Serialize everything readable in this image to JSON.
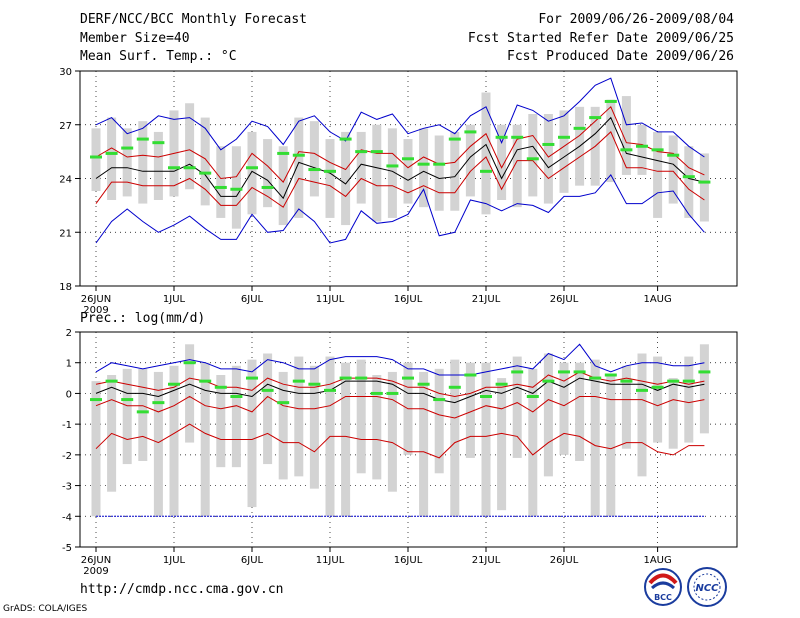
{
  "header": {
    "title": "DERF/NCC/BCC Monthly Forecast",
    "member_size": "Member Size=40",
    "var1": "Mean Surf. Temp.: °C",
    "period": "For 2009/06/26-2009/08/04",
    "refer": "Fcst Started Refer Date 2009/06/25",
    "produced": "Fcst Produced Date 2009/06/26"
  },
  "footer": {
    "url": "http://cmdp.ncc.cma.gov.cn",
    "grads": "GrADS: COLA/IGES",
    "logo1": "BCC",
    "logo2": "NCC"
  },
  "colors": {
    "max": "#0000cc",
    "spread": "#cc0000",
    "mean": "#000000",
    "obs": "#33dd33",
    "box": "#d3d3d3"
  },
  "chart_data": [
    {
      "type": "line",
      "title": "Mean Surf. Temp.: °C",
      "ylim": [
        18,
        30
      ],
      "yticks": [
        "18",
        "21",
        "24",
        "27",
        "30"
      ],
      "xticks": [
        {
          "day": 0,
          "label": "26JUN",
          "sub": "2009"
        },
        {
          "day": 5,
          "label": "1JUL"
        },
        {
          "day": 10,
          "label": "6JUL"
        },
        {
          "day": 15,
          "label": "11JUL"
        },
        {
          "day": 20,
          "label": "16JUL"
        },
        {
          "day": 25,
          "label": "21JUL"
        },
        {
          "day": 30,
          "label": "26JUL"
        },
        {
          "day": 36,
          "label": "1AUG"
        }
      ],
      "ndays": 40,
      "box_low": [
        23.3,
        22.8,
        23.0,
        22.6,
        22.8,
        23.0,
        23.4,
        22.5,
        21.8,
        21.2,
        22.0,
        22.4,
        21.4,
        21.8,
        23.0,
        21.8,
        21.4,
        22.6,
        21.6,
        21.8,
        22.6,
        22.4,
        22.2,
        22.2,
        23.0,
        22.0,
        22.8,
        22.4,
        23.0,
        22.6,
        23.2,
        23.6,
        23.6,
        23.8,
        24.2,
        24.2,
        21.8,
        22.6,
        21.8,
        21.6
      ],
      "box_high": [
        26.8,
        27.4,
        26.8,
        27.2,
        26.6,
        27.8,
        28.2,
        27.4,
        25.8,
        25.8,
        26.6,
        26.2,
        25.8,
        27.4,
        27.2,
        26.2,
        26.6,
        26.6,
        27.0,
        26.8,
        26.2,
        26.8,
        26.4,
        26.6,
        27.0,
        28.8,
        27.0,
        27.0,
        27.6,
        27.6,
        27.8,
        28.0,
        28.0,
        28.4,
        28.6,
        27.0,
        26.6,
        26.4,
        25.8,
        25.4
      ],
      "obs": [
        25.2,
        25.4,
        25.7,
        26.2,
        26.0,
        24.6,
        24.6,
        24.3,
        23.5,
        23.4,
        24.6,
        23.5,
        25.4,
        25.3,
        24.5,
        24.4,
        26.2,
        25.5,
        25.5,
        24.7,
        25.1,
        24.8,
        24.8,
        26.2,
        26.6,
        24.4,
        26.3,
        26.3,
        25.1,
        25.9,
        26.3,
        26.8,
        27.4,
        28.3,
        25.6,
        25.8,
        25.6,
        25.3,
        24.1,
        23.8
      ],
      "series": [
        {
          "name": "max",
          "color": "#0000cc",
          "values": [
            27.0,
            27.4,
            26.5,
            26.8,
            27.5,
            27.3,
            27.4,
            26.8,
            25.6,
            26.2,
            27.2,
            26.9,
            25.9,
            27.2,
            27.5,
            26.6,
            26.1,
            27.7,
            27.3,
            27.6,
            26.5,
            26.8,
            27.0,
            26.5,
            27.5,
            28.0,
            26.0,
            28.1,
            27.8,
            27.2,
            27.5,
            28.3,
            29.2,
            29.6,
            27.0,
            27.1,
            26.6,
            26.6,
            25.8,
            25.2
          ]
        },
        {
          "name": "spread_high",
          "color": "#cc0000",
          "values": [
            25.2,
            25.7,
            25.2,
            25.3,
            25.2,
            25.4,
            25.6,
            25.1,
            24.0,
            24.1,
            25.4,
            24.7,
            23.8,
            25.5,
            25.4,
            24.9,
            24.5,
            25.6,
            25.4,
            25.4,
            24.6,
            25.2,
            24.8,
            24.9,
            25.8,
            26.5,
            24.6,
            26.2,
            26.4,
            25.2,
            25.8,
            26.4,
            27.2,
            28.0,
            26.0,
            25.9,
            25.5,
            25.4,
            24.6,
            24.2
          ]
        },
        {
          "name": "mean",
          "color": "#000000",
          "values": [
            24.0,
            24.6,
            24.6,
            24.4,
            24.4,
            24.4,
            24.8,
            24.2,
            23.0,
            23.0,
            24.4,
            23.9,
            22.9,
            24.9,
            24.6,
            24.3,
            23.7,
            24.8,
            24.6,
            24.4,
            23.9,
            24.4,
            24.0,
            24.1,
            25.2,
            25.9,
            24.0,
            25.6,
            25.8,
            24.6,
            25.2,
            25.8,
            26.5,
            27.4,
            25.4,
            25.2,
            25.0,
            24.8,
            24.0,
            23.8
          ]
        },
        {
          "name": "spread_low",
          "color": "#cc0000",
          "values": [
            22.6,
            23.8,
            23.8,
            23.6,
            23.6,
            23.6,
            24.0,
            23.4,
            22.5,
            22.5,
            23.5,
            23.0,
            22.4,
            24.0,
            23.8,
            23.6,
            23.0,
            24.0,
            23.6,
            23.6,
            23.2,
            23.6,
            23.2,
            23.2,
            24.4,
            25.2,
            23.4,
            25.0,
            25.0,
            24.0,
            24.6,
            25.2,
            25.8,
            26.6,
            24.6,
            24.6,
            24.4,
            24.4,
            23.4,
            22.8
          ]
        },
        {
          "name": "min",
          "color": "#0000cc",
          "values": [
            20.4,
            21.6,
            22.3,
            21.6,
            21.0,
            21.4,
            21.9,
            21.2,
            20.6,
            20.6,
            22.0,
            21.0,
            21.1,
            22.3,
            21.6,
            20.4,
            20.6,
            22.2,
            21.5,
            21.6,
            22.0,
            23.4,
            20.8,
            21.0,
            22.8,
            22.6,
            22.2,
            22.6,
            22.5,
            22.1,
            23.0,
            23.0,
            23.2,
            24.2,
            22.6,
            22.6,
            23.2,
            23.3,
            22.0,
            21.0
          ]
        }
      ]
    },
    {
      "type": "line",
      "title": "Prec.: log(mm/d)",
      "ylim": [
        -5,
        2
      ],
      "yticks": [
        "-5",
        "-4",
        "-3",
        "-2",
        "-1",
        "0",
        "1",
        "2"
      ],
      "xticks": [
        {
          "day": 0,
          "label": "26JUN",
          "sub": "2009"
        },
        {
          "day": 5,
          "label": "1JUL"
        },
        {
          "day": 10,
          "label": "6JUL"
        },
        {
          "day": 15,
          "label": "11JUL"
        },
        {
          "day": 20,
          "label": "16JUL"
        },
        {
          "day": 25,
          "label": "21JUL"
        },
        {
          "day": 30,
          "label": "26JUL"
        },
        {
          "day": 36,
          "label": "1AUG"
        }
      ],
      "ndays": 40,
      "floor": -4,
      "box_low": [
        -4,
        -3.2,
        -2.3,
        -2.2,
        -4,
        -4,
        -1.6,
        -4,
        -2.4,
        -2.4,
        -3.7,
        -2.3,
        -2.8,
        -2.7,
        -3.1,
        -4,
        -4,
        -2.6,
        -2.8,
        -3.2,
        -2.0,
        -4,
        -2.6,
        -4,
        -2.1,
        -4,
        -3.8,
        -2.1,
        -4,
        -2.7,
        -2.0,
        -2.2,
        -4,
        -4,
        -1.8,
        -2.7,
        -1.6,
        -1.8,
        -1.6,
        -1.3
      ],
      "box_high": [
        0.4,
        0.6,
        0.8,
        0.8,
        0.7,
        0.9,
        1.6,
        1.0,
        0.6,
        0.9,
        1.1,
        1.3,
        0.7,
        1.2,
        0.9,
        1.2,
        1.0,
        1.1,
        0.6,
        0.7,
        1.0,
        0.7,
        0.8,
        1.1,
        1.0,
        1.0,
        0.5,
        1.2,
        0.8,
        1.3,
        1.0,
        1.0,
        1.1,
        0.6,
        0.9,
        1.3,
        1.2,
        0.5,
        1.2,
        1.6
      ],
      "obs": [
        -0.2,
        0.4,
        -0.2,
        -0.6,
        -0.3,
        0.3,
        1.0,
        0.4,
        0.2,
        -0.1,
        0.5,
        0.1,
        -0.3,
        0.4,
        0.3,
        0.1,
        0.5,
        0.5,
        0.0,
        0.0,
        0.5,
        0.3,
        -0.2,
        0.2,
        0.6,
        -0.1,
        0.3,
        0.7,
        -0.1,
        0.4,
        0.7,
        0.7,
        0.5,
        0.6,
        0.4,
        0.1,
        0.2,
        0.4,
        0.4,
        0.7
      ],
      "series": [
        {
          "name": "max",
          "color": "#0000cc",
          "values": [
            0.7,
            1.0,
            0.9,
            0.8,
            0.9,
            1.0,
            1.1,
            1.0,
            0.8,
            0.8,
            0.7,
            1.1,
            1.0,
            0.8,
            0.8,
            1.1,
            1.2,
            1.2,
            1.2,
            1.1,
            0.8,
            0.8,
            0.6,
            0.6,
            0.6,
            0.7,
            0.8,
            0.9,
            0.8,
            1.3,
            1.1,
            1.6,
            0.9,
            0.7,
            0.9,
            1.0,
            1.0,
            0.9,
            0.9,
            1.0
          ]
        },
        {
          "name": "spread_high",
          "color": "#cc0000",
          "values": [
            0.3,
            0.4,
            0.3,
            0.2,
            0.1,
            0.2,
            0.5,
            0.4,
            0.2,
            0.2,
            0.1,
            0.5,
            0.3,
            0.2,
            0.2,
            0.3,
            0.5,
            0.5,
            0.5,
            0.4,
            0.2,
            0.2,
            0.0,
            -0.1,
            0.0,
            0.2,
            0.2,
            0.3,
            0.2,
            0.6,
            0.4,
            0.7,
            0.5,
            0.4,
            0.5,
            0.4,
            0.3,
            0.4,
            0.3,
            0.4
          ]
        },
        {
          "name": "mean",
          "color": "#000000",
          "values": [
            0.0,
            0.2,
            0.0,
            0.0,
            -0.1,
            0.1,
            0.3,
            0.1,
            0.0,
            0.0,
            -0.1,
            0.3,
            0.1,
            0.0,
            0.0,
            0.1,
            0.4,
            0.4,
            0.4,
            0.3,
            0.0,
            0.0,
            -0.2,
            -0.3,
            -0.1,
            0.1,
            0.0,
            0.2,
            0.0,
            0.4,
            0.2,
            0.5,
            0.4,
            0.3,
            0.3,
            0.3,
            0.1,
            0.3,
            0.2,
            0.3
          ]
        },
        {
          "name": "spread_low",
          "color": "#cc0000",
          "values": [
            -0.4,
            -0.2,
            -0.4,
            -0.4,
            -0.6,
            -0.4,
            -0.1,
            -0.4,
            -0.5,
            -0.4,
            -0.6,
            -0.1,
            -0.4,
            -0.5,
            -0.5,
            -0.4,
            -0.1,
            -0.1,
            -0.1,
            -0.2,
            -0.5,
            -0.5,
            -0.7,
            -0.8,
            -0.6,
            -0.4,
            -0.5,
            -0.3,
            -0.6,
            -0.2,
            -0.4,
            -0.1,
            -0.1,
            -0.2,
            -0.2,
            -0.2,
            -0.4,
            -0.2,
            -0.3,
            -0.2
          ]
        },
        {
          "name": "min",
          "color": "#cc0000",
          "values": [
            -1.8,
            -1.3,
            -1.5,
            -1.4,
            -1.6,
            -1.3,
            -1.0,
            -1.3,
            -1.5,
            -1.5,
            -1.5,
            -1.3,
            -1.6,
            -1.6,
            -1.9,
            -1.4,
            -1.4,
            -1.5,
            -1.5,
            -1.6,
            -1.9,
            -1.9,
            -2.1,
            -1.6,
            -1.4,
            -1.4,
            -1.3,
            -1.4,
            -2.0,
            -1.6,
            -1.3,
            -1.4,
            -1.7,
            -1.8,
            -1.6,
            -1.6,
            -1.9,
            -2.0,
            -1.7,
            -1.7
          ]
        }
      ]
    }
  ]
}
